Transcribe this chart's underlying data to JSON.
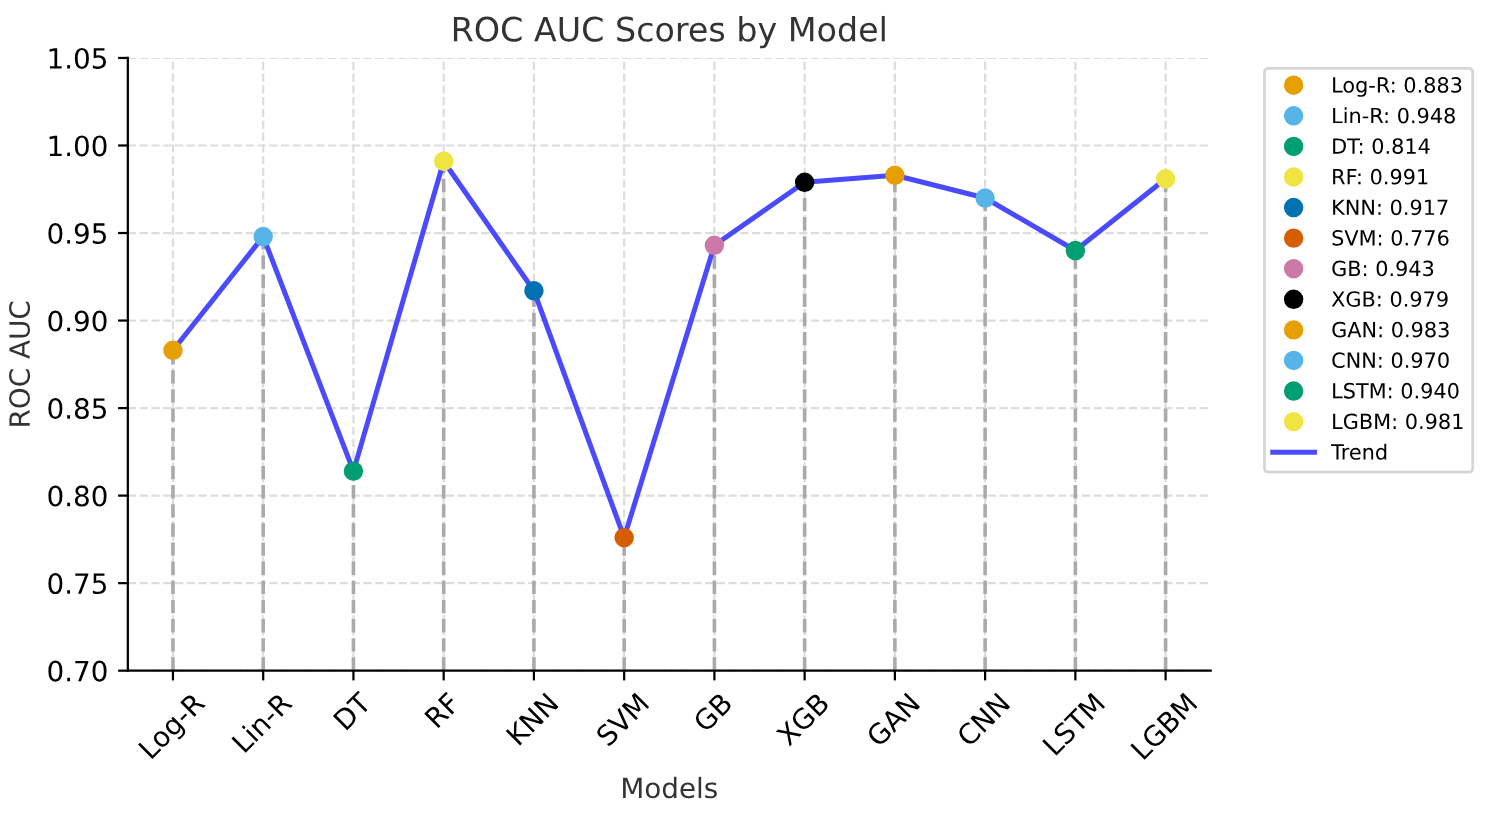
{
  "chart_data": {
    "type": "lollipop",
    "title": "ROC AUC Scores by Model",
    "xlabel": "Models",
    "ylabel": "ROC AUC",
    "categories": [
      "Log-R",
      "Lin-R",
      "DT",
      "RF",
      "KNN",
      "SVM",
      "GB",
      "XGB",
      "GAN",
      "CNN",
      "LSTM",
      "LGBM"
    ],
    "series": [
      {
        "name": "Log-R: 0.883",
        "color": "#e69f00",
        "x": [
          "Log-R"
        ],
        "values": [
          0.883
        ]
      },
      {
        "name": "Lin-R: 0.948",
        "color": "#56b4e9",
        "x": [
          "Lin-R"
        ],
        "values": [
          0.948
        ]
      },
      {
        "name": "DT: 0.814",
        "color": "#009e73",
        "x": [
          "DT"
        ],
        "values": [
          0.814
        ]
      },
      {
        "name": "RF: 0.991",
        "color": "#f0e442",
        "x": [
          "RF"
        ],
        "values": [
          0.991
        ]
      },
      {
        "name": "KNN: 0.917",
        "color": "#0072b2",
        "x": [
          "KNN"
        ],
        "values": [
          0.917
        ]
      },
      {
        "name": "SVM: 0.776",
        "color": "#d55e00",
        "x": [
          "SVM"
        ],
        "values": [
          0.776
        ]
      },
      {
        "name": "GB: 0.943",
        "color": "#cc79a7",
        "x": [
          "GB"
        ],
        "values": [
          0.943
        ]
      },
      {
        "name": "XGB: 0.979",
        "color": "#000000",
        "x": [
          "XGB"
        ],
        "values": [
          0.979
        ]
      },
      {
        "name": "GAN: 0.983",
        "color": "#e69f00",
        "x": [
          "GAN"
        ],
        "values": [
          0.983
        ]
      },
      {
        "name": "CNN: 0.970",
        "color": "#56b4e9",
        "x": [
          "CNN"
        ],
        "values": [
          0.97
        ]
      },
      {
        "name": "LSTM: 0.940",
        "color": "#009e73",
        "x": [
          "LSTM"
        ],
        "values": [
          0.94
        ]
      },
      {
        "name": "LGBM: 0.981",
        "color": "#f0e442",
        "x": [
          "LGBM"
        ],
        "values": [
          0.981
        ]
      },
      {
        "name": "Trend",
        "type": "line",
        "color": "#4a4aff",
        "marker": "none",
        "values": [
          0.883,
          0.948,
          0.814,
          0.991,
          0.917,
          0.776,
          0.943,
          0.979,
          0.983,
          0.97,
          0.94,
          0.981
        ]
      }
    ],
    "ylim": [
      0.7,
      1.05
    ],
    "yticks": [
      {
        "value": 0.7,
        "label": "0.70"
      },
      {
        "value": 0.75,
        "label": "0.75"
      },
      {
        "value": 0.8,
        "label": "0.80"
      },
      {
        "value": 0.85,
        "label": "0.85"
      },
      {
        "value": 0.9,
        "label": "0.90"
      },
      {
        "value": 0.95,
        "label": "0.95"
      },
      {
        "value": 1.0,
        "label": "1.00"
      },
      {
        "value": 1.05,
        "label": "1.05"
      }
    ],
    "grid": true,
    "legend": "top right",
    "marker": "circle"
  }
}
